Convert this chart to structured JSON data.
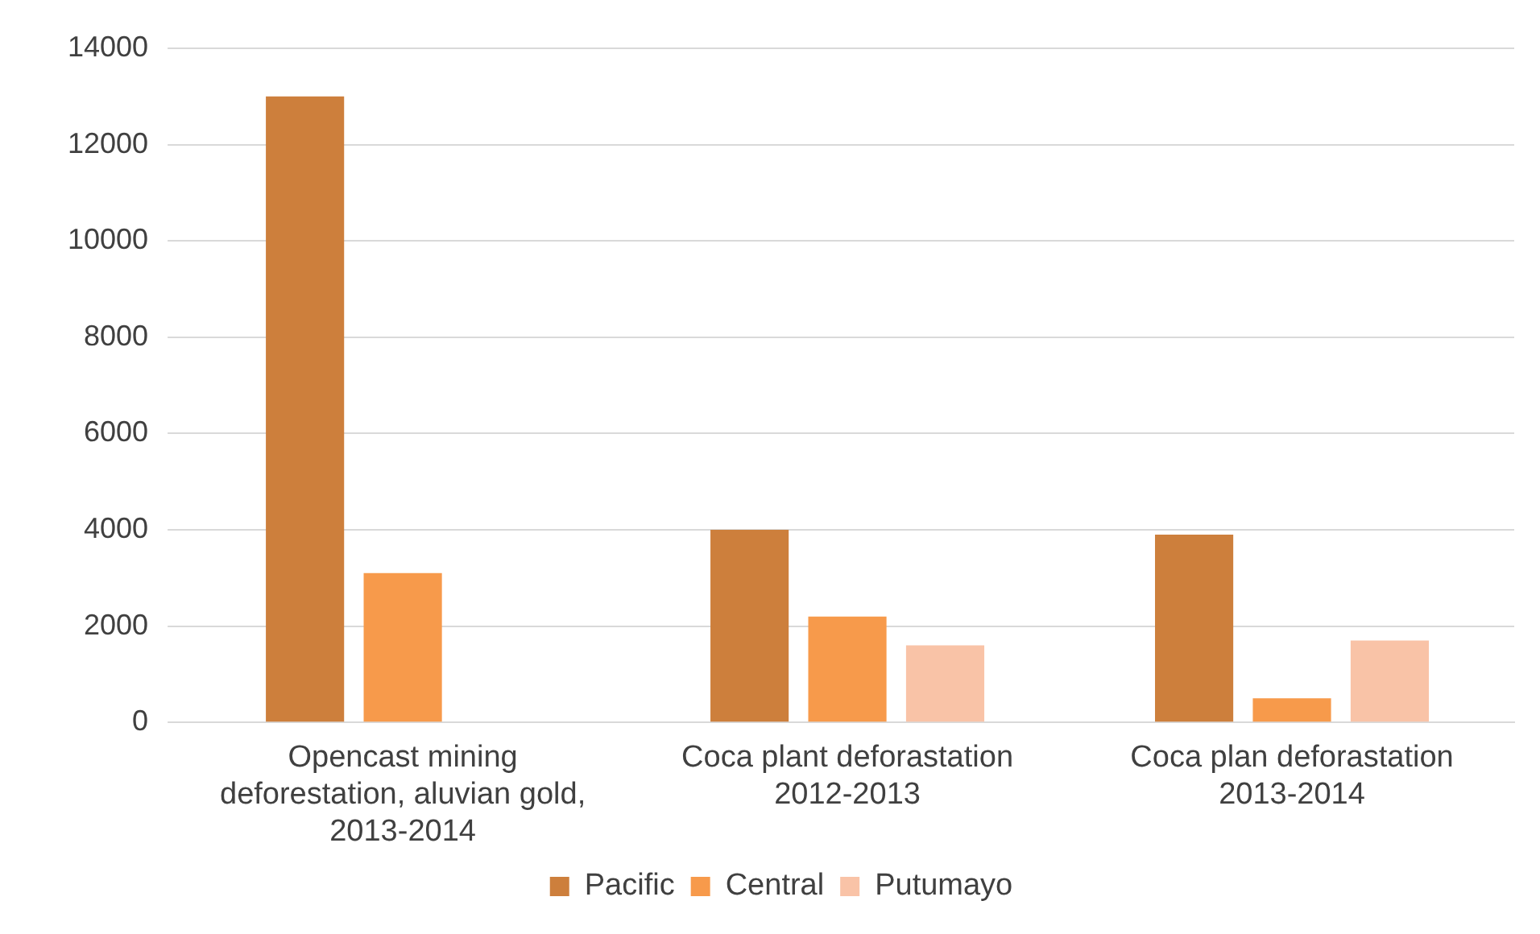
{
  "chart_data": {
    "type": "bar",
    "categories": [
      "Opencast mining deforestation, aluvian gold, 2013-2014",
      "Coca plant deforastation 2012-2013",
      "Coca plan deforastation 2013-2014"
    ],
    "series": [
      {
        "name": "Pacific",
        "color": "#cd7f3c",
        "values": [
          13000,
          4000,
          3900
        ]
      },
      {
        "name": "Central",
        "color": "#f79a4b",
        "values": [
          3100,
          2200,
          500
        ]
      },
      {
        "name": "Putumayo",
        "color": "#f9c3a7",
        "values": [
          null,
          1600,
          1700
        ]
      }
    ],
    "ylim": [
      0,
      14000
    ],
    "yticks": [
      0,
      2000,
      4000,
      6000,
      8000,
      10000,
      12000,
      14000
    ],
    "grid": "y",
    "legend": "bottom"
  }
}
